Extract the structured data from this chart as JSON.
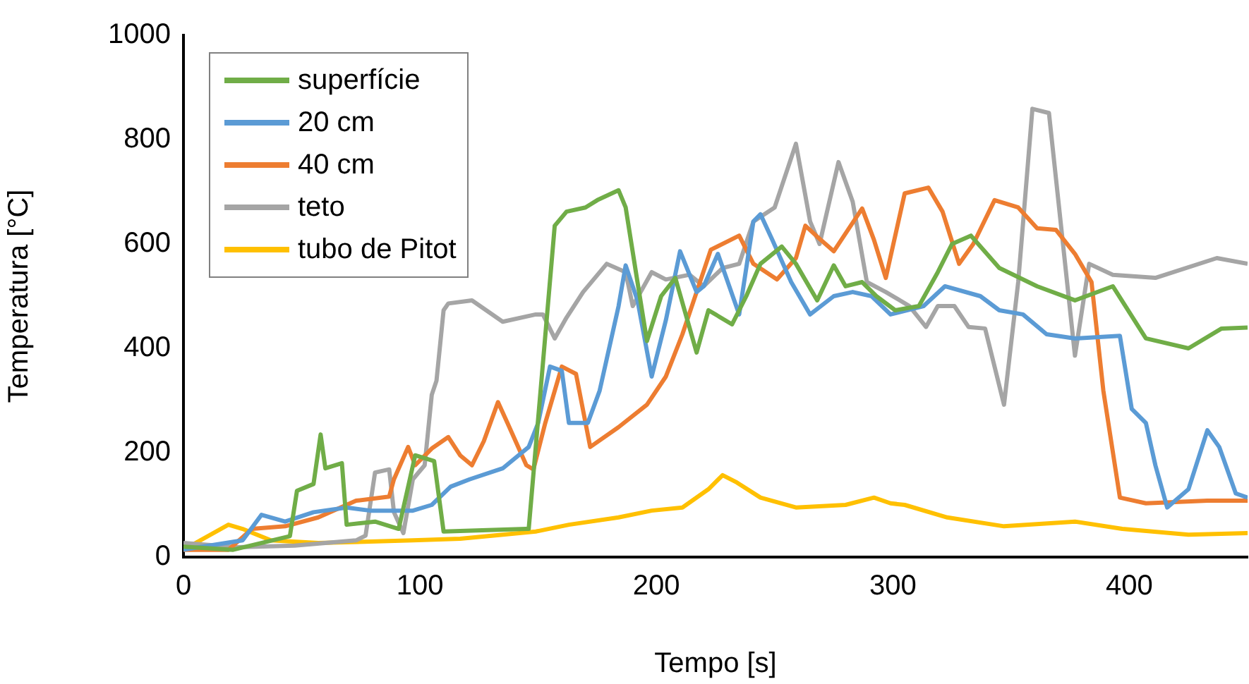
{
  "chart_data": {
    "type": "line",
    "xlabel": "Tempo [s]",
    "ylabel": "Temperatura [°C]",
    "xlim": [
      0,
      450
    ],
    "xticks": [
      0,
      100,
      200,
      300,
      400
    ],
    "ylim": [
      0,
      1000
    ],
    "yticks": [
      0,
      200,
      400,
      600,
      800,
      1000
    ],
    "grid": false,
    "legend": "top left",
    "marker": "none",
    "line_style": "solid",
    "series": [
      {
        "name": "superfície",
        "color": "#70ad47",
        "x": [
          0,
          21,
          45,
          48,
          55,
          58,
          60,
          67,
          69,
          81,
          91,
          98,
          106,
          110,
          145,
          146,
          157,
          162,
          170,
          175,
          184,
          187,
          192,
          196,
          202,
          208,
          217,
          222,
          232,
          238,
          244,
          253,
          259,
          268,
          275,
          280,
          287,
          293,
          301,
          311,
          319,
          325,
          333,
          345,
          361,
          377,
          393,
          407,
          425,
          439,
          450
        ],
        "values": [
          20,
          14,
          40,
          127,
          140,
          235,
          170,
          180,
          62,
          68,
          54,
          195,
          184,
          49,
          54,
          54,
          635,
          662,
          670,
          684,
          703,
          670,
          527,
          414,
          500,
          535,
          392,
          473,
          446,
          500,
          562,
          595,
          562,
          492,
          559,
          519,
          527,
          500,
          473,
          481,
          546,
          600,
          616,
          554,
          519,
          492,
          519,
          419,
          400,
          438,
          440
        ]
      },
      {
        "name": "20 cm",
        "color": "#5b9bd5",
        "x": [
          0,
          25,
          33,
          43,
          55,
          69,
          79,
          97,
          105,
          113,
          121,
          135,
          146,
          150,
          155,
          160,
          163,
          171,
          176,
          184,
          187,
          192,
          198,
          204,
          210,
          217,
          220,
          226,
          235,
          241,
          244,
          249,
          257,
          265,
          275,
          283,
          291,
          299,
          313,
          322,
          337,
          345,
          355,
          365,
          377,
          396,
          401,
          407,
          411,
          416,
          425,
          433,
          438,
          445,
          450
        ],
        "values": [
          14,
          32,
          81,
          68,
          86,
          95,
          89,
          89,
          100,
          135,
          149,
          170,
          211,
          257,
          365,
          357,
          257,
          257,
          319,
          481,
          559,
          492,
          346,
          454,
          586,
          508,
          519,
          581,
          465,
          643,
          657,
          608,
          527,
          465,
          500,
          508,
          500,
          465,
          481,
          519,
          500,
          473,
          465,
          427,
          419,
          424,
          284,
          257,
          176,
          95,
          130,
          243,
          211,
          122,
          114
        ]
      },
      {
        "name": "40 cm",
        "color": "#ed7d31",
        "x": [
          0,
          19,
          29,
          43,
          57,
          73,
          87,
          89,
          95,
          98,
          105,
          112,
          117,
          122,
          127,
          133,
          137,
          145,
          148,
          153,
          160,
          166,
          172,
          184,
          196,
          204,
          211,
          217,
          223,
          235,
          241,
          251,
          259,
          263,
          268,
          275,
          287,
          292,
          297,
          305,
          315,
          321,
          328,
          334,
          343,
          353,
          361,
          369,
          377,
          384,
          389,
          396,
          407,
          433,
          450
        ],
        "values": [
          14,
          14,
          54,
          59,
          76,
          108,
          116,
          149,
          211,
          176,
          208,
          230,
          195,
          176,
          222,
          297,
          257,
          176,
          168,
          257,
          365,
          351,
          211,
          249,
          292,
          346,
          427,
          508,
          589,
          616,
          562,
          532,
          573,
          635,
          614,
          586,
          668,
          608,
          535,
          697,
          708,
          662,
          562,
          600,
          684,
          670,
          630,
          627,
          581,
          527,
          319,
          114,
          103,
          108,
          108
        ]
      },
      {
        "name": "teto",
        "color": "#a5a5a5",
        "x": [
          0,
          23,
          47,
          73,
          77,
          81,
          87,
          89,
          93,
          97,
          102,
          105,
          107,
          110,
          112,
          122,
          135,
          149,
          152,
          157,
          162,
          169,
          179,
          187,
          190,
          198,
          204,
          214,
          220,
          228,
          235,
          241,
          250,
          259,
          265,
          269,
          277,
          283,
          289,
          297,
          307,
          314,
          319,
          326,
          332,
          339,
          347,
          353,
          359,
          366,
          369,
          377,
          383,
          393,
          411,
          437,
          450
        ],
        "values": [
          27,
          19,
          22,
          32,
          41,
          162,
          168,
          86,
          46,
          149,
          176,
          311,
          338,
          473,
          486,
          492,
          451,
          465,
          465,
          419,
          459,
          508,
          562,
          546,
          481,
          546,
          532,
          541,
          519,
          554,
          562,
          643,
          670,
          792,
          643,
          600,
          757,
          681,
          527,
          508,
          481,
          441,
          481,
          481,
          441,
          438,
          292,
          527,
          859,
          851,
          724,
          386,
          562,
          541,
          535,
          573,
          562
        ]
      },
      {
        "name": "tubo de Pitot",
        "color": "#ffc000",
        "x": [
          0,
          19,
          25,
          37,
          57,
          97,
          117,
          149,
          163,
          184,
          198,
          211,
          222,
          228,
          234,
          244,
          259,
          280,
          292,
          299,
          305,
          323,
          347,
          377,
          397,
          425,
          450
        ],
        "values": [
          14,
          62,
          54,
          32,
          27,
          32,
          35,
          49,
          62,
          76,
          89,
          95,
          130,
          157,
          143,
          114,
          95,
          100,
          114,
          103,
          100,
          76,
          59,
          68,
          54,
          43,
          46
        ]
      }
    ]
  }
}
